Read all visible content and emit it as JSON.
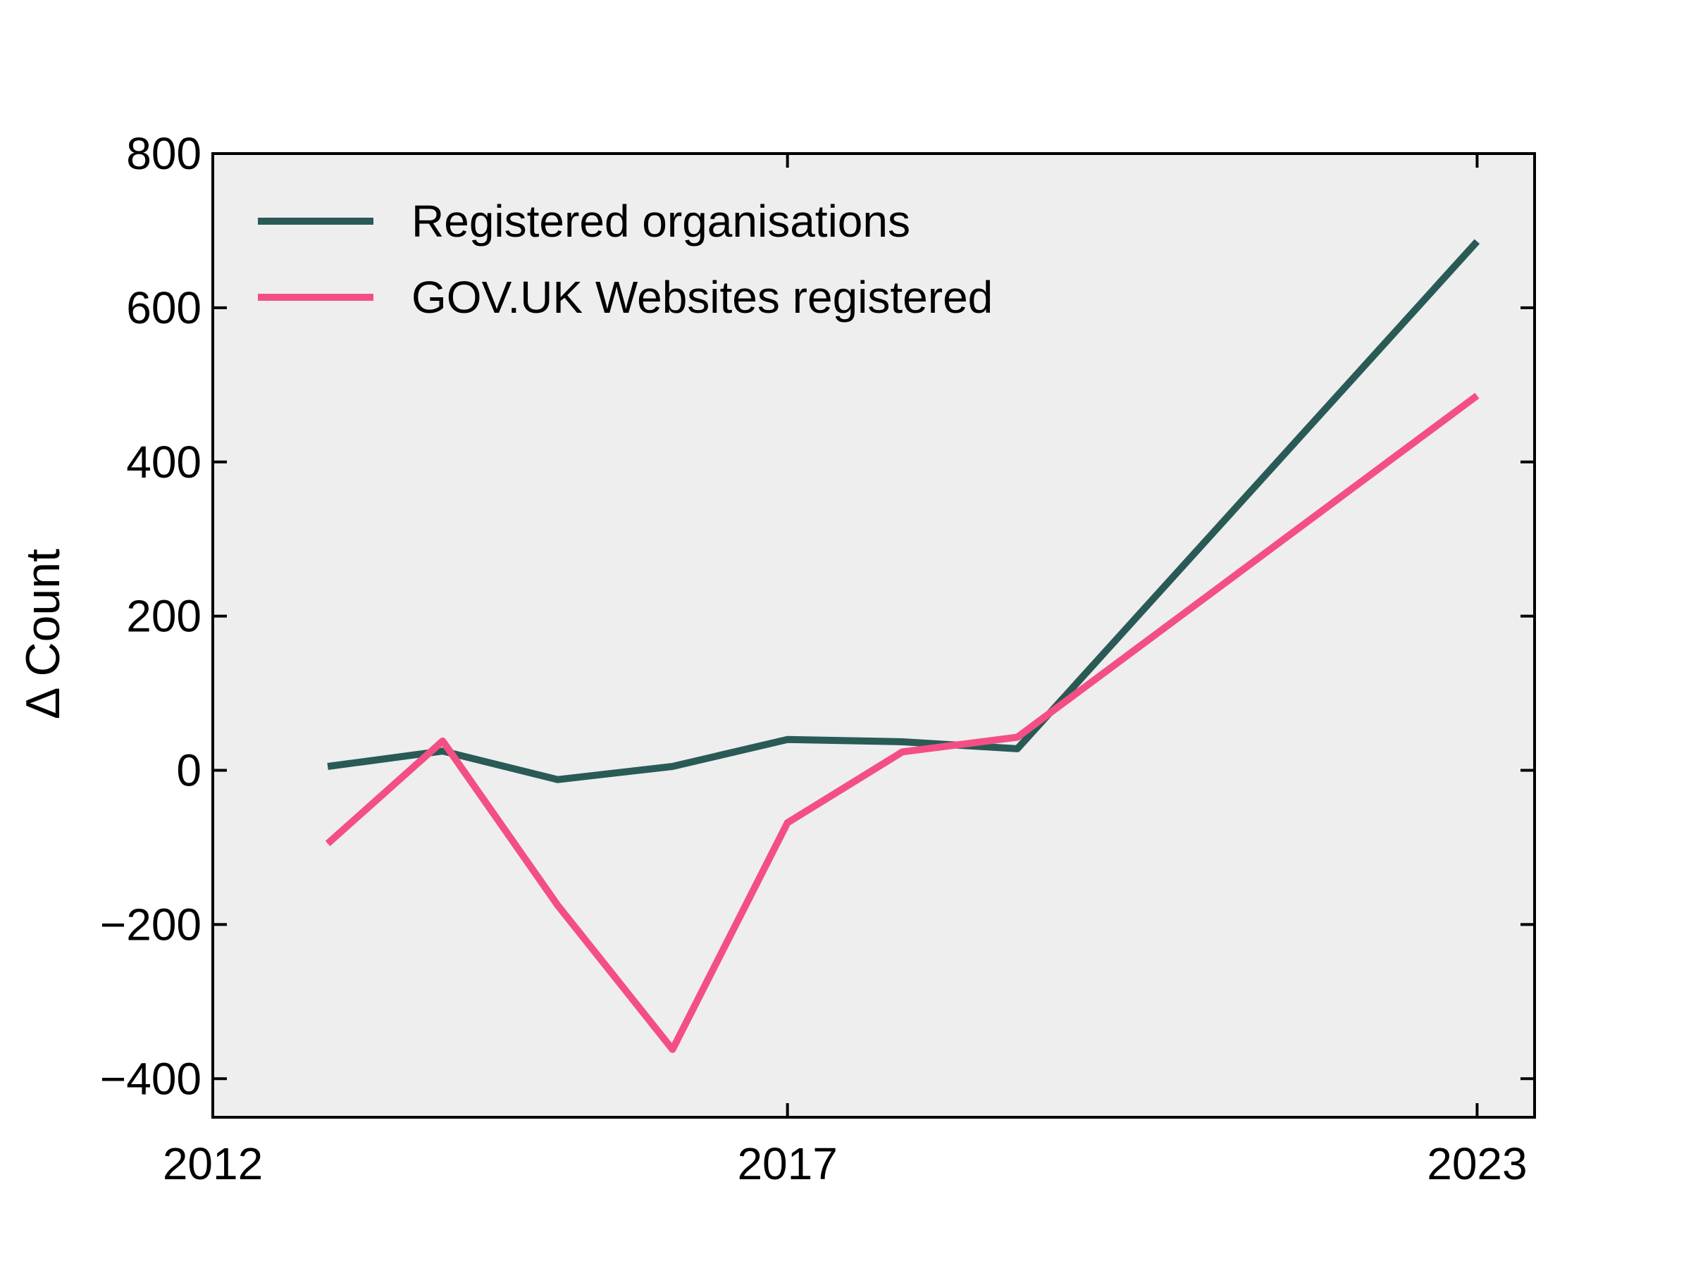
{
  "chart_data": {
    "type": "line",
    "title": "",
    "xlabel": "",
    "ylabel": "Δ Count",
    "x": [
      2013,
      2014,
      2015,
      2016,
      2017,
      2018,
      2019,
      2023
    ],
    "xlim": [
      2012,
      2023.5
    ],
    "ylim": [
      -450,
      800
    ],
    "xticks": [
      2012,
      2017,
      2023
    ],
    "yticks": [
      -400,
      -200,
      0,
      200,
      400,
      600,
      800
    ],
    "ytick_labels": [
      "−400",
      "−200",
      "0",
      "200",
      "400",
      "600",
      "800"
    ],
    "grid": false,
    "legend_position": "top-left",
    "background_color": "#eeeeee",
    "series": [
      {
        "name": "Registered organisations",
        "color": "#2a5a55",
        "values": [
          5,
          25,
          -12,
          5,
          40,
          37,
          28,
          686
        ]
      },
      {
        "name": "GOV.UK Websites registered",
        "color": "#f44f84",
        "values": [
          -95,
          38,
          -175,
          -362,
          -68,
          24,
          43,
          486
        ]
      }
    ]
  }
}
